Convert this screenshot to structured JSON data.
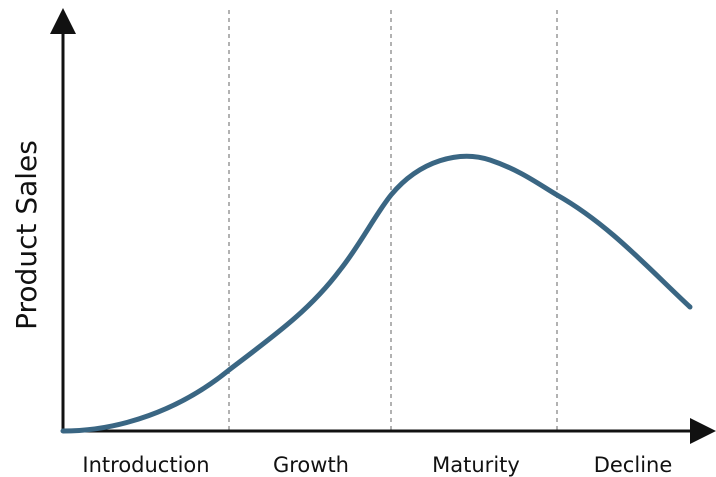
{
  "chart_data": {
    "type": "line",
    "ylabel": "Product Sales",
    "xlabel": "",
    "stages": [
      "Introduction",
      "Growth",
      "Maturity",
      "Decline"
    ],
    "curve_color": "#3a6683",
    "axis_color": "#111111",
    "divider_color": "#999999",
    "grid": false
  }
}
